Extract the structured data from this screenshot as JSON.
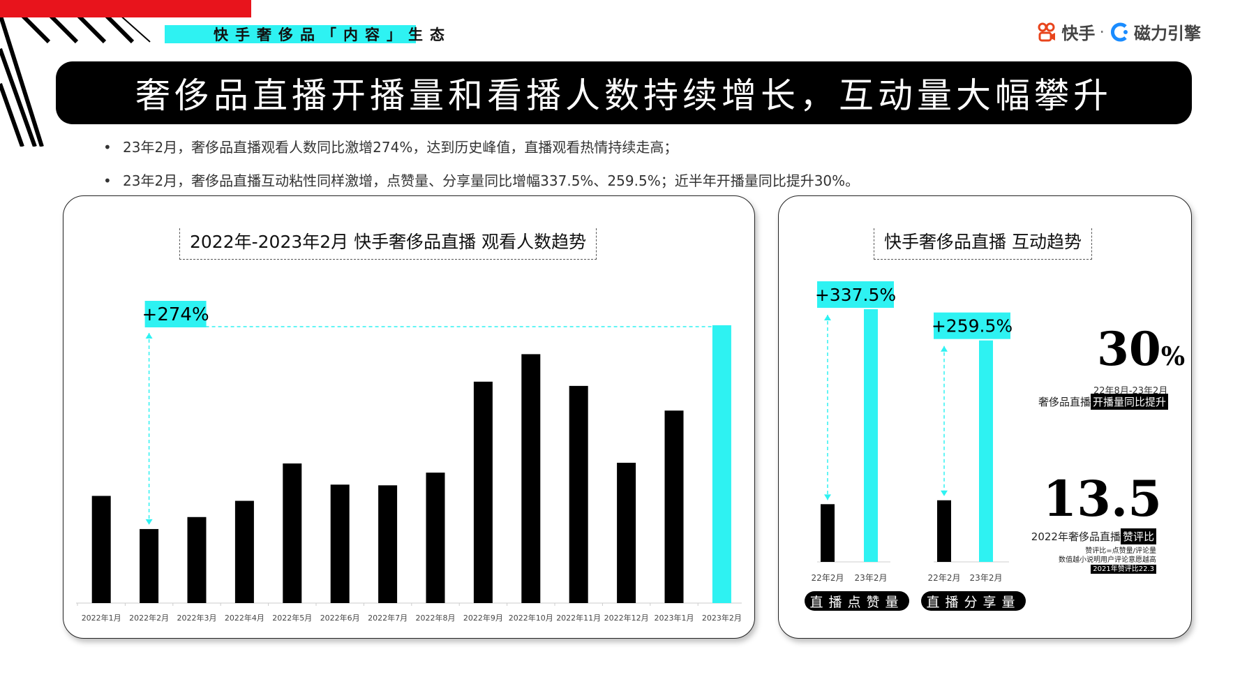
{
  "header": {
    "category_label": "快手奢侈品「内容」生态",
    "logo_kuaishou": "快手",
    "logo_separator": "·",
    "logo_cili": "磁力引擎"
  },
  "banner": {
    "title": "奢侈品直播开播量和看播人数持续增长，互动量大幅攀升"
  },
  "bullets": [
    "23年2月，奢侈品直播观看人数同比激增274%，达到历史峰值，直播观看热情持续走高；",
    "23年2月，奢侈品直播互动粘性同样激增，点赞量、分享量同比增幅337.5%、259.5%；近半年开播量同比提升30%。"
  ],
  "colors": {
    "accent": "#2ef2f2",
    "bar": "#000000",
    "highlight_bar": "#2ef2f2",
    "red": "#e8141c"
  },
  "left_card": {
    "title": "2022年-2023年2月 快手奢侈品直播 观看人数趋势",
    "growth_label": "+274%"
  },
  "right_card": {
    "title": "快手奢侈品直播 互动趋势",
    "stat1": {
      "value": "30",
      "unit": "%",
      "period": "22年8月-23年2月",
      "desc_prefix": "奢侈品直播",
      "desc_highlight": "开播量同比提升"
    },
    "stat2": {
      "value": "13.5",
      "desc_prefix": "2022年奢侈品直播",
      "desc_highlight": "赞评比",
      "note1": "赞评比=点赞量/评论量",
      "note2": "数值越小说明用户评论意愿越高",
      "note3": "2021年赞评比22.3"
    }
  },
  "chart_data": [
    {
      "type": "bar",
      "title": "2022年-2023年2月 快手奢侈品直播 观看人数趋势",
      "categories": [
        "2022年1月",
        "2022年2月",
        "2022年3月",
        "2022年4月",
        "2022年5月",
        "2022年6月",
        "2022年7月",
        "2022年8月",
        "2022年9月",
        "2022年10月",
        "2022年11月",
        "2022年12月",
        "2023年1月",
        "2023年2月"
      ],
      "values": [
        152,
        105,
        122,
        145,
        198,
        168,
        167,
        185,
        314,
        353,
        308,
        199,
        273,
        394
      ],
      "highlight_index": 13,
      "annotation": {
        "label": "+274%",
        "from_index": 1,
        "to_index": 13
      },
      "axis_labels_shown": false,
      "grid": false
    },
    {
      "type": "bar",
      "title": "快手奢侈品直播 互动趋势",
      "groups": [
        {
          "name": "直播点赞量",
          "categories": [
            "22年2月",
            "23年2月"
          ],
          "values": [
            74,
            324
          ],
          "annotation": "+337.5%"
        },
        {
          "name": "直播分享量",
          "categories": [
            "22年2月",
            "23年2月"
          ],
          "values": [
            79,
            284
          ],
          "annotation": "+259.5%"
        }
      ],
      "axis_labels_shown": false,
      "grid": false
    }
  ]
}
